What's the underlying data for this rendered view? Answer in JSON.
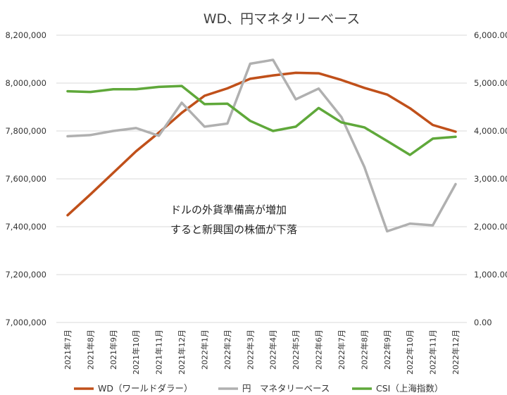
{
  "chart_data": {
    "type": "line",
    "title": "WD、円マネタリーベース",
    "categories": [
      "2021年7月",
      "2021年8月",
      "2021年9月",
      "2021年10月",
      "2021年11月",
      "2021年12月",
      "2022年1月",
      "2022年2月",
      "2022年3月",
      "2022年4月",
      "2022年5月",
      "2022年6月",
      "2022年7月",
      "2022年8月",
      "2022年9月",
      "2022年10月",
      "2022年11月",
      "2022年12月"
    ],
    "y_left": {
      "min": 7000000,
      "max": 8200000,
      "ticks": [
        "7,000,000",
        "7,200,000",
        "7,400,000",
        "7,600,000",
        "7,800,000",
        "8,000,000",
        "8,200,000"
      ]
    },
    "y_right": {
      "min": 0,
      "max": 6000,
      "ticks": [
        "0.00",
        "1,000.00",
        "2,000.00",
        "3,000.00",
        "4,000.00",
        "5,000.00",
        "6,000.00"
      ]
    },
    "grid": true,
    "legend_position": "bottom",
    "annotation": [
      "ドルの外貨準備高が増加",
      "すると新興国の株価が下落"
    ],
    "series": [
      {
        "name": "WD（ワールドダラー）",
        "axis": "left",
        "color": "#c0501a",
        "values": [
          7448000,
          7535000,
          7625000,
          7715000,
          7793000,
          7876000,
          7947000,
          7978000,
          8018000,
          8032000,
          8043000,
          8041000,
          8013000,
          7980000,
          7952000,
          7895000,
          7825000,
          7797000
        ]
      },
      {
        "name": "円　マネタリーベース",
        "axis": "left",
        "color": "#b0b0b0",
        "values": [
          7778000,
          7783000,
          7800000,
          7812000,
          7780000,
          7918000,
          7818000,
          7831000,
          8081000,
          8097000,
          7932000,
          7977000,
          7858000,
          7650000,
          7381000,
          7413000,
          7406000,
          7578000
        ]
      },
      {
        "name": "CSI（上海指数）",
        "axis": "right",
        "color": "#5fa83a",
        "values": [
          4830,
          4815,
          4870,
          4870,
          4920,
          4940,
          4560,
          4570,
          4210,
          4000,
          4090,
          4480,
          4180,
          4075,
          3790,
          3500,
          3840,
          3880
        ]
      }
    ]
  }
}
